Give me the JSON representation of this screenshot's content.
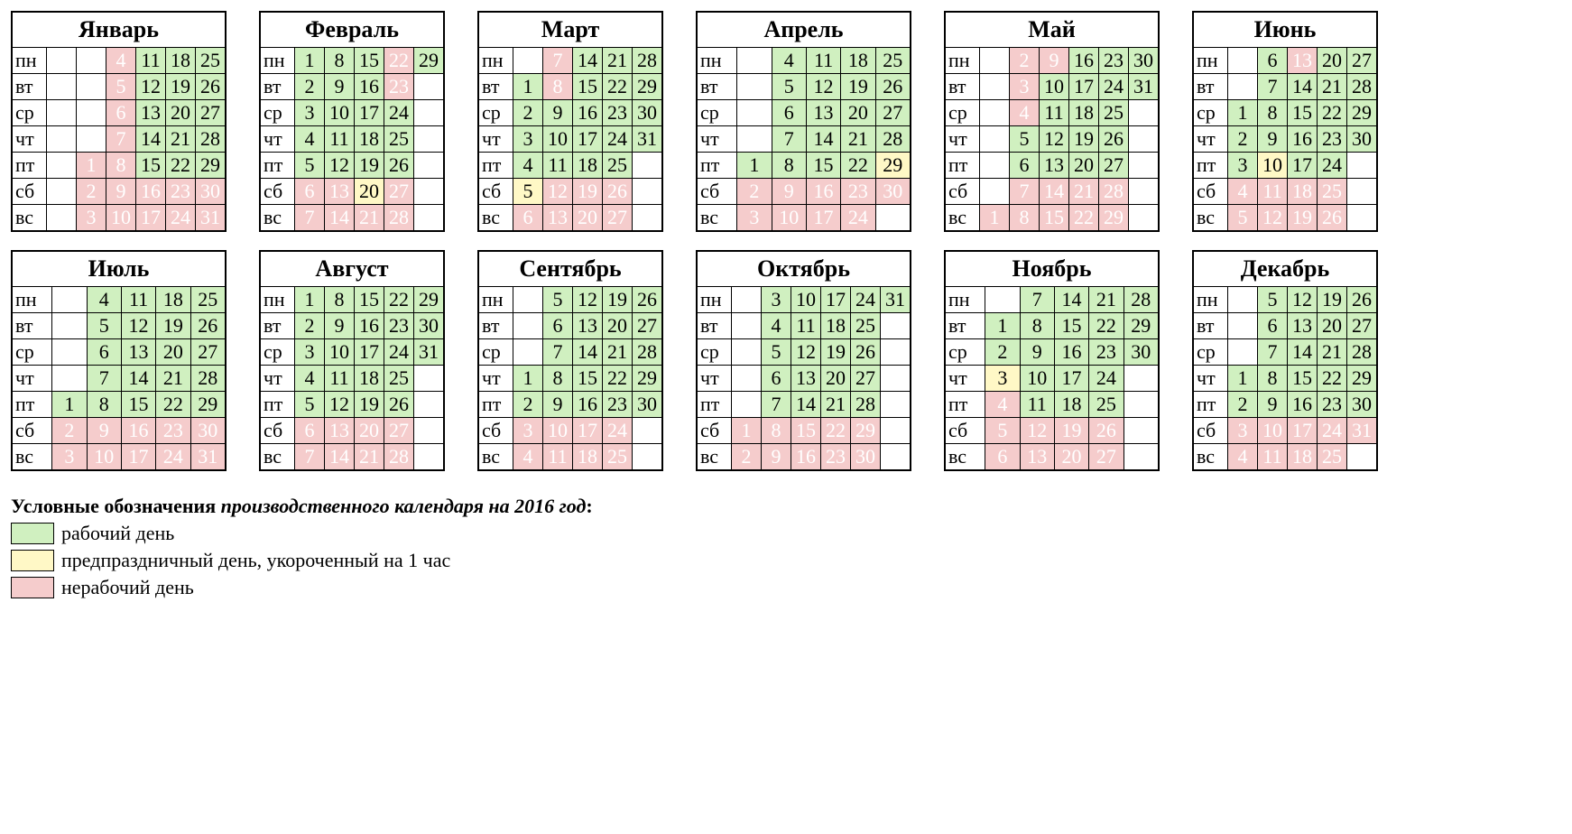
{
  "weekday_labels": [
    "пн",
    "вт",
    "ср",
    "чт",
    "пт",
    "сб",
    "вс"
  ],
  "colors": {
    "work_bg": "#d0f0c0",
    "short_bg": "#fff8c6",
    "off_bg": "#f5cccc",
    "off_text": "#ffffff",
    "border": "#000000",
    "page_bg": "#ffffff",
    "title_fontsize_pt": 26,
    "cell_fontsize_pt": 22
  },
  "legend": {
    "title_plain": "Условные обозначения ",
    "title_em": "производственного календаря на 2016 год",
    "title_tail": ":",
    "items": [
      {
        "label": "рабочий день",
        "type": "work"
      },
      {
        "label": "предпраздничный день, укороченный на 1 час",
        "type": "short"
      },
      {
        "label": "нерабочий день",
        "type": "off"
      }
    ]
  },
  "months": [
    {
      "name": "Январь",
      "cols": 6,
      "grid": [
        [
          "",
          "",
          "4",
          "11",
          "18",
          "25"
        ],
        [
          "",
          "",
          "5",
          "12",
          "19",
          "26"
        ],
        [
          "",
          "",
          "6",
          "13",
          "20",
          "27"
        ],
        [
          "",
          "",
          "7",
          "14",
          "21",
          "28"
        ],
        [
          "",
          "1",
          "8",
          "15",
          "22",
          "29"
        ],
        [
          "",
          "2",
          "9",
          "16",
          "23",
          "30"
        ],
        [
          "",
          "3",
          "10",
          "17",
          "24",
          "31"
        ]
      ],
      "types": [
        [
          "b",
          "b",
          "o",
          "w",
          "w",
          "w"
        ],
        [
          "b",
          "b",
          "o",
          "w",
          "w",
          "w"
        ],
        [
          "b",
          "b",
          "o",
          "w",
          "w",
          "w"
        ],
        [
          "b",
          "b",
          "o",
          "w",
          "w",
          "w"
        ],
        [
          "b",
          "o",
          "o",
          "w",
          "w",
          "w"
        ],
        [
          "b",
          "o",
          "o",
          "o",
          "o",
          "o"
        ],
        [
          "b",
          "o",
          "o",
          "o",
          "o",
          "o"
        ]
      ]
    },
    {
      "name": "Февраль",
      "cols": 5,
      "grid": [
        [
          "1",
          "8",
          "15",
          "22",
          "29"
        ],
        [
          "2",
          "9",
          "16",
          "23",
          ""
        ],
        [
          "3",
          "10",
          "17",
          "24",
          ""
        ],
        [
          "4",
          "11",
          "18",
          "25",
          ""
        ],
        [
          "5",
          "12",
          "19",
          "26",
          ""
        ],
        [
          "6",
          "13",
          "20",
          "27",
          ""
        ],
        [
          "7",
          "14",
          "21",
          "28",
          ""
        ]
      ],
      "types": [
        [
          "w",
          "w",
          "w",
          "o",
          "w"
        ],
        [
          "w",
          "w",
          "w",
          "o",
          "b"
        ],
        [
          "w",
          "w",
          "w",
          "w",
          "b"
        ],
        [
          "w",
          "w",
          "w",
          "w",
          "b"
        ],
        [
          "w",
          "w",
          "w",
          "w",
          "b"
        ],
        [
          "o",
          "o",
          "s",
          "o",
          "b"
        ],
        [
          "o",
          "o",
          "o",
          "o",
          "b"
        ]
      ]
    },
    {
      "name": "Март",
      "cols": 5,
      "grid": [
        [
          "",
          "7",
          "14",
          "21",
          "28"
        ],
        [
          "1",
          "8",
          "15",
          "22",
          "29"
        ],
        [
          "2",
          "9",
          "16",
          "23",
          "30"
        ],
        [
          "3",
          "10",
          "17",
          "24",
          "31"
        ],
        [
          "4",
          "11",
          "18",
          "25",
          ""
        ],
        [
          "5",
          "12",
          "19",
          "26",
          ""
        ],
        [
          "6",
          "13",
          "20",
          "27",
          ""
        ]
      ],
      "types": [
        [
          "b",
          "o",
          "w",
          "w",
          "w"
        ],
        [
          "w",
          "o",
          "w",
          "w",
          "w"
        ],
        [
          "w",
          "w",
          "w",
          "w",
          "w"
        ],
        [
          "w",
          "w",
          "w",
          "w",
          "w"
        ],
        [
          "w",
          "w",
          "w",
          "w",
          "b"
        ],
        [
          "s",
          "o",
          "o",
          "o",
          "b"
        ],
        [
          "o",
          "o",
          "o",
          "o",
          "b"
        ]
      ]
    },
    {
      "name": "Апрель",
      "cols": 5,
      "grid": [
        [
          "",
          "4",
          "11",
          "18",
          "25"
        ],
        [
          "",
          "5",
          "12",
          "19",
          "26"
        ],
        [
          "",
          "6",
          "13",
          "20",
          "27"
        ],
        [
          "",
          "7",
          "14",
          "21",
          "28"
        ],
        [
          "1",
          "8",
          "15",
          "22",
          "29"
        ],
        [
          "2",
          "9",
          "16",
          "23",
          "30"
        ],
        [
          "3",
          "10",
          "17",
          "24",
          ""
        ]
      ],
      "types": [
        [
          "b",
          "w",
          "w",
          "w",
          "w"
        ],
        [
          "b",
          "w",
          "w",
          "w",
          "w"
        ],
        [
          "b",
          "w",
          "w",
          "w",
          "w"
        ],
        [
          "b",
          "w",
          "w",
          "w",
          "w"
        ],
        [
          "w",
          "w",
          "w",
          "w",
          "s"
        ],
        [
          "o",
          "o",
          "o",
          "o",
          "o"
        ],
        [
          "o",
          "o",
          "o",
          "o",
          "b"
        ]
      ]
    },
    {
      "name": "Май",
      "cols": 6,
      "grid": [
        [
          "",
          "2",
          "9",
          "16",
          "23",
          "30"
        ],
        [
          "",
          "3",
          "10",
          "17",
          "24",
          "31"
        ],
        [
          "",
          "4",
          "11",
          "18",
          "25",
          ""
        ],
        [
          "",
          "5",
          "12",
          "19",
          "26",
          ""
        ],
        [
          "",
          "6",
          "13",
          "20",
          "27",
          ""
        ],
        [
          "",
          "7",
          "14",
          "21",
          "28",
          ""
        ],
        [
          "1",
          "8",
          "15",
          "22",
          "29",
          ""
        ]
      ],
      "types": [
        [
          "b",
          "o",
          "o",
          "w",
          "w",
          "w"
        ],
        [
          "b",
          "o",
          "w",
          "w",
          "w",
          "w"
        ],
        [
          "b",
          "o",
          "w",
          "w",
          "w",
          "b"
        ],
        [
          "b",
          "w",
          "w",
          "w",
          "w",
          "b"
        ],
        [
          "b",
          "w",
          "w",
          "w",
          "w",
          "b"
        ],
        [
          "b",
          "o",
          "o",
          "o",
          "o",
          "b"
        ],
        [
          "o",
          "o",
          "o",
          "o",
          "o",
          "b"
        ]
      ]
    },
    {
      "name": "Июнь",
      "cols": 5,
      "grid": [
        [
          "",
          "6",
          "13",
          "20",
          "27"
        ],
        [
          "",
          "7",
          "14",
          "21",
          "28"
        ],
        [
          "1",
          "8",
          "15",
          "22",
          "29"
        ],
        [
          "2",
          "9",
          "16",
          "23",
          "30"
        ],
        [
          "3",
          "10",
          "17",
          "24",
          ""
        ],
        [
          "4",
          "11",
          "18",
          "25",
          ""
        ],
        [
          "5",
          "12",
          "19",
          "26",
          ""
        ]
      ],
      "types": [
        [
          "b",
          "w",
          "o",
          "w",
          "w"
        ],
        [
          "b",
          "w",
          "w",
          "w",
          "w"
        ],
        [
          "w",
          "w",
          "w",
          "w",
          "w"
        ],
        [
          "w",
          "w",
          "w",
          "w",
          "w"
        ],
        [
          "w",
          "s",
          "w",
          "w",
          "b"
        ],
        [
          "o",
          "o",
          "o",
          "o",
          "b"
        ],
        [
          "o",
          "o",
          "o",
          "o",
          "b"
        ]
      ]
    },
    {
      "name": "Июль",
      "cols": 5,
      "grid": [
        [
          "",
          "4",
          "11",
          "18",
          "25"
        ],
        [
          "",
          "5",
          "12",
          "19",
          "26"
        ],
        [
          "",
          "6",
          "13",
          "20",
          "27"
        ],
        [
          "",
          "7",
          "14",
          "21",
          "28"
        ],
        [
          "1",
          "8",
          "15",
          "22",
          "29"
        ],
        [
          "2",
          "9",
          "16",
          "23",
          "30"
        ],
        [
          "3",
          "10",
          "17",
          "24",
          "31"
        ]
      ],
      "types": [
        [
          "b",
          "w",
          "w",
          "w",
          "w"
        ],
        [
          "b",
          "w",
          "w",
          "w",
          "w"
        ],
        [
          "b",
          "w",
          "w",
          "w",
          "w"
        ],
        [
          "b",
          "w",
          "w",
          "w",
          "w"
        ],
        [
          "w",
          "w",
          "w",
          "w",
          "w"
        ],
        [
          "o",
          "o",
          "o",
          "o",
          "o"
        ],
        [
          "o",
          "o",
          "o",
          "o",
          "o"
        ]
      ]
    },
    {
      "name": "Август",
      "cols": 5,
      "grid": [
        [
          "1",
          "8",
          "15",
          "22",
          "29"
        ],
        [
          "2",
          "9",
          "16",
          "23",
          "30"
        ],
        [
          "3",
          "10",
          "17",
          "24",
          "31"
        ],
        [
          "4",
          "11",
          "18",
          "25",
          ""
        ],
        [
          "5",
          "12",
          "19",
          "26",
          ""
        ],
        [
          "6",
          "13",
          "20",
          "27",
          ""
        ],
        [
          "7",
          "14",
          "21",
          "28",
          ""
        ]
      ],
      "types": [
        [
          "w",
          "w",
          "w",
          "w",
          "w"
        ],
        [
          "w",
          "w",
          "w",
          "w",
          "w"
        ],
        [
          "w",
          "w",
          "w",
          "w",
          "w"
        ],
        [
          "w",
          "w",
          "w",
          "w",
          "b"
        ],
        [
          "w",
          "w",
          "w",
          "w",
          "b"
        ],
        [
          "o",
          "o",
          "o",
          "o",
          "b"
        ],
        [
          "o",
          "o",
          "o",
          "o",
          "b"
        ]
      ]
    },
    {
      "name": "Сентябрь",
      "cols": 5,
      "grid": [
        [
          "",
          "5",
          "12",
          "19",
          "26"
        ],
        [
          "",
          "6",
          "13",
          "20",
          "27"
        ],
        [
          "",
          "7",
          "14",
          "21",
          "28"
        ],
        [
          "1",
          "8",
          "15",
          "22",
          "29"
        ],
        [
          "2",
          "9",
          "16",
          "23",
          "30"
        ],
        [
          "3",
          "10",
          "17",
          "24",
          ""
        ],
        [
          "4",
          "11",
          "18",
          "25",
          ""
        ]
      ],
      "types": [
        [
          "b",
          "w",
          "w",
          "w",
          "w"
        ],
        [
          "b",
          "w",
          "w",
          "w",
          "w"
        ],
        [
          "b",
          "w",
          "w",
          "w",
          "w"
        ],
        [
          "w",
          "w",
          "w",
          "w",
          "w"
        ],
        [
          "w",
          "w",
          "w",
          "w",
          "w"
        ],
        [
          "o",
          "o",
          "o",
          "o",
          "b"
        ],
        [
          "o",
          "o",
          "o",
          "o",
          "b"
        ]
      ]
    },
    {
      "name": "Октябрь",
      "cols": 6,
      "grid": [
        [
          "",
          "3",
          "10",
          "17",
          "24",
          "31"
        ],
        [
          "",
          "4",
          "11",
          "18",
          "25",
          ""
        ],
        [
          "",
          "5",
          "12",
          "19",
          "26",
          ""
        ],
        [
          "",
          "6",
          "13",
          "20",
          "27",
          ""
        ],
        [
          "",
          "7",
          "14",
          "21",
          "28",
          ""
        ],
        [
          "1",
          "8",
          "15",
          "22",
          "29",
          ""
        ],
        [
          "2",
          "9",
          "16",
          "23",
          "30",
          ""
        ]
      ],
      "types": [
        [
          "b",
          "w",
          "w",
          "w",
          "w",
          "w"
        ],
        [
          "b",
          "w",
          "w",
          "w",
          "w",
          "b"
        ],
        [
          "b",
          "w",
          "w",
          "w",
          "w",
          "b"
        ],
        [
          "b",
          "w",
          "w",
          "w",
          "w",
          "b"
        ],
        [
          "b",
          "w",
          "w",
          "w",
          "w",
          "b"
        ],
        [
          "o",
          "o",
          "o",
          "o",
          "o",
          "b"
        ],
        [
          "o",
          "o",
          "o",
          "o",
          "o",
          "b"
        ]
      ]
    },
    {
      "name": "Ноябрь",
      "cols": 5,
      "grid": [
        [
          "",
          "7",
          "14",
          "21",
          "28"
        ],
        [
          "1",
          "8",
          "15",
          "22",
          "29"
        ],
        [
          "2",
          "9",
          "16",
          "23",
          "30"
        ],
        [
          "3",
          "10",
          "17",
          "24",
          ""
        ],
        [
          "4",
          "11",
          "18",
          "25",
          ""
        ],
        [
          "5",
          "12",
          "19",
          "26",
          ""
        ],
        [
          "6",
          "13",
          "20",
          "27",
          ""
        ]
      ],
      "types": [
        [
          "b",
          "w",
          "w",
          "w",
          "w"
        ],
        [
          "w",
          "w",
          "w",
          "w",
          "w"
        ],
        [
          "w",
          "w",
          "w",
          "w",
          "w"
        ],
        [
          "s",
          "w",
          "w",
          "w",
          "b"
        ],
        [
          "o",
          "w",
          "w",
          "w",
          "b"
        ],
        [
          "o",
          "o",
          "o",
          "o",
          "b"
        ],
        [
          "o",
          "o",
          "o",
          "o",
          "b"
        ]
      ]
    },
    {
      "name": "Декабрь",
      "cols": 5,
      "grid": [
        [
          "",
          "5",
          "12",
          "19",
          "26"
        ],
        [
          "",
          "6",
          "13",
          "20",
          "27"
        ],
        [
          "",
          "7",
          "14",
          "21",
          "28"
        ],
        [
          "1",
          "8",
          "15",
          "22",
          "29"
        ],
        [
          "2",
          "9",
          "16",
          "23",
          "30"
        ],
        [
          "3",
          "10",
          "17",
          "24",
          "31"
        ],
        [
          "4",
          "11",
          "18",
          "25",
          ""
        ]
      ],
      "types": [
        [
          "b",
          "w",
          "w",
          "w",
          "w"
        ],
        [
          "b",
          "w",
          "w",
          "w",
          "w"
        ],
        [
          "b",
          "w",
          "w",
          "w",
          "w"
        ],
        [
          "w",
          "w",
          "w",
          "w",
          "w"
        ],
        [
          "w",
          "w",
          "w",
          "w",
          "w"
        ],
        [
          "o",
          "o",
          "o",
          "o",
          "o"
        ],
        [
          "o",
          "o",
          "o",
          "o",
          "b"
        ]
      ]
    }
  ]
}
